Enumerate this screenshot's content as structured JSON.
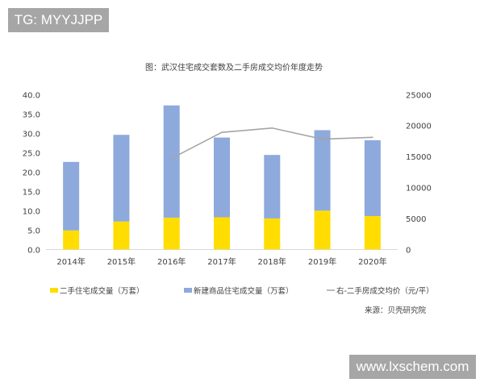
{
  "watermarks": {
    "top_left": "TG: MYYJJPP",
    "bottom_right": "www.lxschem.com"
  },
  "chart_data": {
    "type": "bar",
    "stacked": true,
    "title": "图：武汉住宅成交套数及二手房成交均价年度走势",
    "categories": [
      "2014年",
      "2015年",
      "2016年",
      "2017年",
      "2018年",
      "2019年",
      "2020年"
    ],
    "ylim": [
      0,
      40
    ],
    "yticks": [
      "0.0",
      "5.0",
      "10.0",
      "15.0",
      "20.0",
      "25.0",
      "30.0",
      "35.0",
      "40.0"
    ],
    "y2lim": [
      0,
      25000
    ],
    "y2ticks": [
      "0",
      "5000",
      "10000",
      "15000",
      "20000",
      "25000"
    ],
    "grid": false,
    "legend_position": "bottom",
    "series": [
      {
        "name": "二手住宅成交量（万套）",
        "type": "bar",
        "axis": "left",
        "color": "#FFDD00",
        "values": [
          4.9,
          7.2,
          8.2,
          8.3,
          8.0,
          10.0,
          8.6
        ]
      },
      {
        "name": "新建商品住宅成交量（万套）",
        "type": "bar",
        "axis": "left",
        "color": "#8EA9DB",
        "values": [
          17.7,
          22.4,
          29.0,
          20.6,
          16.4,
          20.8,
          19.6
        ]
      },
      {
        "name": "右-二手房成交均价（元/平）",
        "type": "line",
        "axis": "right",
        "color": "#A5A5A5",
        "values": [
          null,
          null,
          14700,
          18900,
          19600,
          17800,
          18100
        ]
      }
    ],
    "source": "来源：贝壳研究院"
  }
}
